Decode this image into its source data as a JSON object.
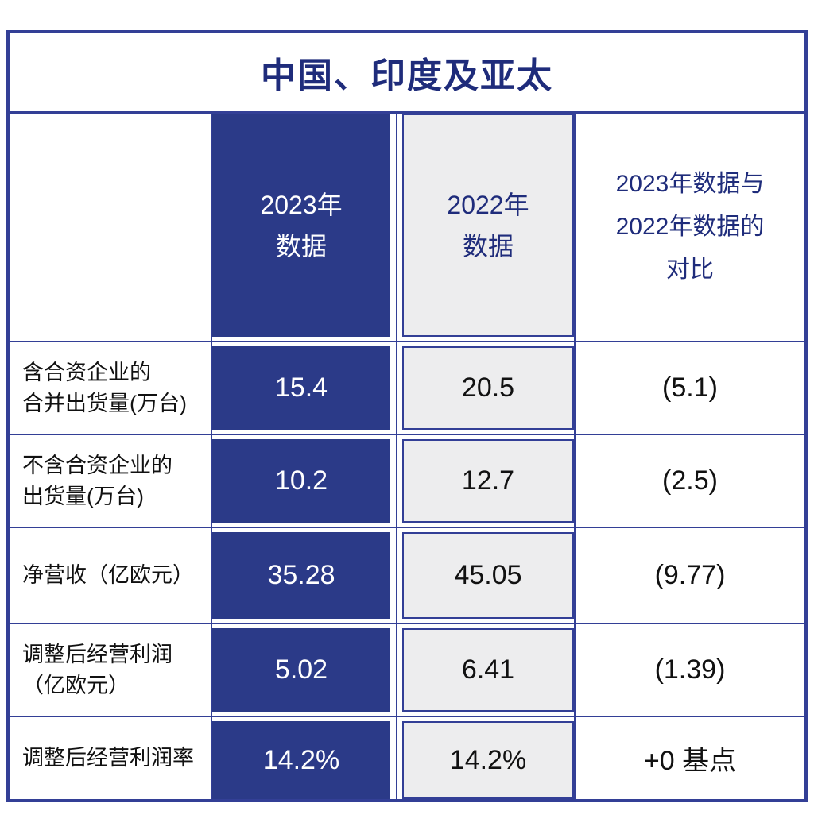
{
  "title": "中国、印度及亚太",
  "display": {
    "header_2023": "2023年\n数据",
    "header_2022": "2022年\n数据",
    "header_compare": "2023年数据与\n2022年数据的\n对比",
    "row_labels": [
      "含合资企业的\n合并出货量(万台)",
      "不含合资企业的\n出货量(万台)",
      "净营收（亿欧元）",
      "调整后经营利润\n（亿欧元）",
      "调整后经营利润率"
    ]
  },
  "chart_data": {
    "type": "table",
    "title": "中国、印度及亚太",
    "columns": [
      "",
      "2023年数据",
      "2022年数据",
      "2023年数据与2022年数据的对比"
    ],
    "rows": [
      [
        "含合资企业的合并出货量(万台)",
        "15.4",
        "20.5",
        "(5.1)"
      ],
      [
        "不含合资企业的出货量(万台)",
        "10.2",
        "12.7",
        "(2.5)"
      ],
      [
        "净营收（亿欧元）",
        "35.28",
        "45.05",
        "(9.77)"
      ],
      [
        "调整后经营利润（亿欧元）",
        "5.02",
        "6.41",
        "(1.39)"
      ],
      [
        "调整后经营利润率",
        "14.2%",
        "14.2%",
        "+0 基点"
      ]
    ]
  },
  "colors": {
    "accent_blue_fill": "#2B3A88",
    "border_blue": "#333F96",
    "navy_text": "#1F2C7B",
    "gray_fill": "#EDEDEE",
    "black_text": "#111111",
    "white_text": "#FFFFFF"
  }
}
